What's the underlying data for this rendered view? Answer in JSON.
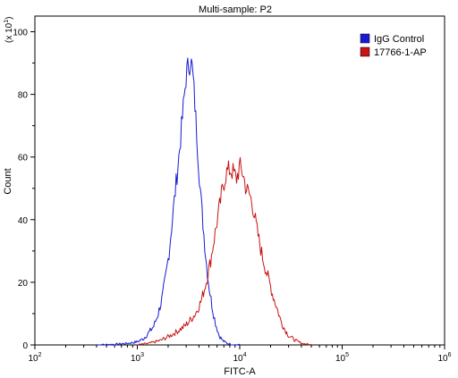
{
  "chart_data": {
    "type": "line",
    "title": "Multi-sample: P2",
    "xlabel": "FITC-A",
    "ylabel": "Count",
    "y_scale_note": "(x 10^1)",
    "x_scale": "log",
    "xlim": [
      100,
      1000000
    ],
    "ylim": [
      0,
      105
    ],
    "x_ticks": [
      {
        "value": 100,
        "base": "10",
        "exp": "2"
      },
      {
        "value": 1000,
        "base": "10",
        "exp": "3"
      },
      {
        "value": 10000,
        "base": "10",
        "exp": "4"
      },
      {
        "value": 100000,
        "base": "10",
        "exp": "5"
      },
      {
        "value": 1000000,
        "base": "10",
        "exp": "6"
      }
    ],
    "y_ticks": [
      "0",
      "20",
      "40",
      "60",
      "80",
      "100"
    ],
    "legend_position": "top-right",
    "series": [
      {
        "name": "IgG Control",
        "color": "#1a1ad4",
        "points": [
          [
            400,
            0
          ],
          [
            600,
            0.2
          ],
          [
            800,
            0.5
          ],
          [
            1000,
            1
          ],
          [
            1150,
            2
          ],
          [
            1300,
            4
          ],
          [
            1450,
            6
          ],
          [
            1600,
            10
          ],
          [
            1750,
            15
          ],
          [
            1900,
            22
          ],
          [
            2050,
            30
          ],
          [
            2200,
            40
          ],
          [
            2400,
            52
          ],
          [
            2600,
            63
          ],
          [
            2800,
            75
          ],
          [
            3000,
            86
          ],
          [
            3150,
            89
          ],
          [
            3300,
            91
          ],
          [
            3450,
            88
          ],
          [
            3600,
            80
          ],
          [
            3800,
            68
          ],
          [
            4000,
            56
          ],
          [
            4200,
            46
          ],
          [
            4450,
            36
          ],
          [
            4700,
            27
          ],
          [
            5000,
            19
          ],
          [
            5400,
            12
          ],
          [
            5800,
            7
          ],
          [
            6300,
            3
          ],
          [
            6900,
            1.2
          ],
          [
            7600,
            0.5
          ],
          [
            8500,
            0.1
          ],
          [
            10000,
            0
          ]
        ]
      },
      {
        "name": "17766-1-AP",
        "color": "#c81414",
        "points": [
          [
            1000,
            0
          ],
          [
            1300,
            0.5
          ],
          [
            1700,
            1.5
          ],
          [
            2100,
            3
          ],
          [
            2500,
            4.5
          ],
          [
            2900,
            6
          ],
          [
            3300,
            8
          ],
          [
            3700,
            10
          ],
          [
            4200,
            14
          ],
          [
            4700,
            20
          ],
          [
            5200,
            27
          ],
          [
            5700,
            35
          ],
          [
            6200,
            42
          ],
          [
            6800,
            50
          ],
          [
            7400,
            55
          ],
          [
            8000,
            56
          ],
          [
            8700,
            55
          ],
          [
            9300,
            53
          ],
          [
            10000,
            57
          ],
          [
            10700,
            55
          ],
          [
            11500,
            50
          ],
          [
            12500,
            48
          ],
          [
            13500,
            44
          ],
          [
            14500,
            38
          ],
          [
            15500,
            33
          ],
          [
            16700,
            28
          ],
          [
            18000,
            24
          ],
          [
            19500,
            20
          ],
          [
            21000,
            16
          ],
          [
            23000,
            12
          ],
          [
            25000,
            8
          ],
          [
            27500,
            5
          ],
          [
            30000,
            3
          ],
          [
            33000,
            2
          ],
          [
            37000,
            1
          ],
          [
            42000,
            0.4
          ],
          [
            50000,
            0
          ]
        ]
      }
    ]
  }
}
